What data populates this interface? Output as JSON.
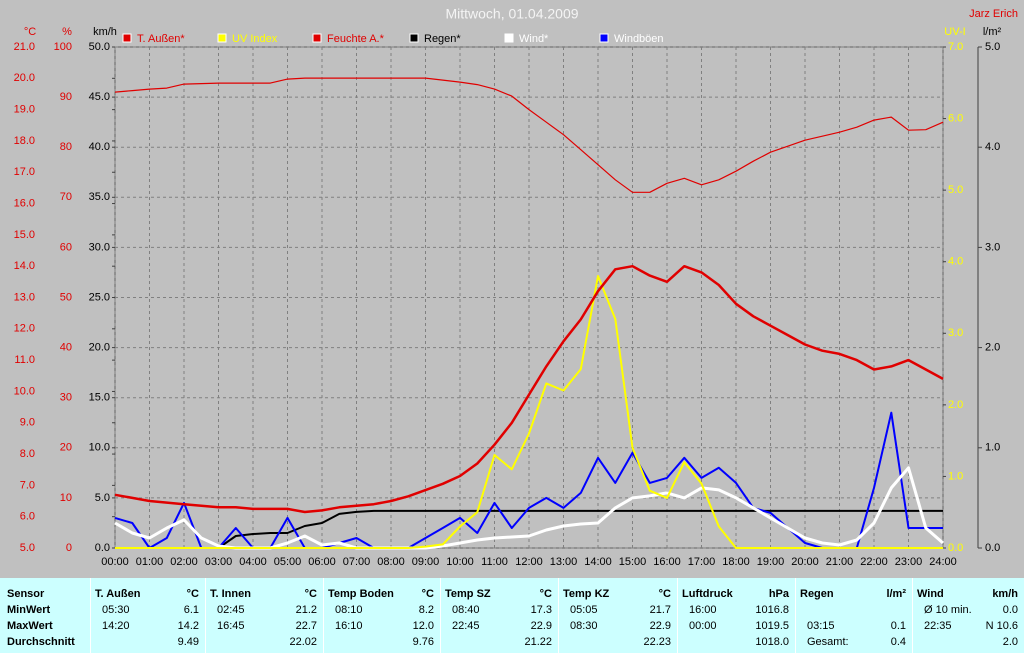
{
  "chart_data": {
    "type": "line",
    "title": "Mittwoch, 01.04.2009",
    "author": "Jarz Erich",
    "x": [
      0,
      0.5,
      1,
      1.5,
      2,
      2.5,
      3,
      3.5,
      4,
      4.5,
      5,
      5.5,
      6,
      6.5,
      7,
      7.5,
      8,
      8.5,
      9,
      9.5,
      10,
      10.5,
      11,
      11.5,
      12,
      12.5,
      13,
      13.5,
      14,
      14.5,
      15,
      15.5,
      16,
      16.5,
      17,
      17.5,
      18,
      18.5,
      19,
      19.5,
      20,
      20.5,
      21,
      21.5,
      22,
      22.5,
      23,
      23.5,
      24
    ],
    "xlim": [
      0,
      24
    ],
    "xticks": [
      {
        "value": 0,
        "label": "00:00"
      },
      {
        "value": 1,
        "label": "01:00"
      },
      {
        "value": 2,
        "label": "02:00"
      },
      {
        "value": 3,
        "label": "03:00"
      },
      {
        "value": 4,
        "label": "04:00"
      },
      {
        "value": 5,
        "label": "05:00"
      },
      {
        "value": 6,
        "label": "06:00"
      },
      {
        "value": 7,
        "label": "07:00"
      },
      {
        "value": 8,
        "label": "08:00"
      },
      {
        "value": 9,
        "label": "09:00"
      },
      {
        "value": 10,
        "label": "10:00"
      },
      {
        "value": 11,
        "label": "11:00"
      },
      {
        "value": 12,
        "label": "12:00"
      },
      {
        "value": 13,
        "label": "13:00"
      },
      {
        "value": 14,
        "label": "14:00"
      },
      {
        "value": 15,
        "label": "15:00"
      },
      {
        "value": 16,
        "label": "16:00"
      },
      {
        "value": 17,
        "label": "17:00"
      },
      {
        "value": 18,
        "label": "18:00"
      },
      {
        "value": 19,
        "label": "19:00"
      },
      {
        "value": 20,
        "label": "20:00"
      },
      {
        "value": 21,
        "label": "21:00"
      },
      {
        "value": 22,
        "label": "22:00"
      },
      {
        "value": 23,
        "label": "23:00"
      },
      {
        "value": 24,
        "label": "24:00"
      }
    ],
    "grid": true,
    "axes": [
      {
        "unit": "°C",
        "side": "left",
        "color": "#e00000",
        "lim": [
          5,
          21
        ],
        "ticks": [
          {
            "value": 5,
            "label": "5.0"
          },
          {
            "value": 6,
            "label": "6.0"
          },
          {
            "value": 7,
            "label": "7.0"
          },
          {
            "value": 8,
            "label": "8.0"
          },
          {
            "value": 9,
            "label": "9.0"
          },
          {
            "value": 10,
            "label": "10.0"
          },
          {
            "value": 11,
            "label": "11.0"
          },
          {
            "value": 12,
            "label": "12.0"
          },
          {
            "value": 13,
            "label": "13.0"
          },
          {
            "value": 14,
            "label": "14.0"
          },
          {
            "value": 15,
            "label": "15.0"
          },
          {
            "value": 16,
            "label": "16.0"
          },
          {
            "value": 17,
            "label": "17.0"
          },
          {
            "value": 18,
            "label": "18.0"
          },
          {
            "value": 19,
            "label": "19.0"
          },
          {
            "value": 20,
            "label": "20.0"
          },
          {
            "value": 21,
            "label": "21.0"
          }
        ]
      },
      {
        "unit": "%",
        "side": "left",
        "color": "#e00000",
        "lim": [
          0,
          100
        ],
        "ticks": [
          0,
          10,
          20,
          30,
          40,
          50,
          60,
          70,
          80,
          90,
          100
        ]
      },
      {
        "unit": "km/h",
        "side": "left",
        "color": "#000000",
        "lim": [
          0,
          50
        ],
        "grid": true,
        "ticks": [
          {
            "value": 0,
            "label": "0.0"
          },
          {
            "value": 5,
            "label": "5.0"
          },
          {
            "value": 10,
            "label": "10.0"
          },
          {
            "value": 15,
            "label": "15.0"
          },
          {
            "value": 20,
            "label": "20.0"
          },
          {
            "value": 25,
            "label": "25.0"
          },
          {
            "value": 30,
            "label": "30.0"
          },
          {
            "value": 35,
            "label": "35.0"
          },
          {
            "value": 40,
            "label": "40.0"
          },
          {
            "value": 45,
            "label": "45.0"
          },
          {
            "value": 50,
            "label": "50.0"
          }
        ]
      },
      {
        "unit": "UV-I",
        "side": "right",
        "color": "#ffff00",
        "lim": [
          0,
          7
        ],
        "ticks": [
          {
            "value": 0,
            "label": "0.0"
          },
          {
            "value": 1,
            "label": "1.0"
          },
          {
            "value": 2,
            "label": "2.0"
          },
          {
            "value": 3,
            "label": "3.0"
          },
          {
            "value": 4,
            "label": "4.0"
          },
          {
            "value": 5,
            "label": "5.0"
          },
          {
            "value": 6,
            "label": "6.0"
          },
          {
            "value": 7,
            "label": "7.0"
          }
        ]
      },
      {
        "unit": "l/m²",
        "side": "right",
        "color": "#000000",
        "lim": [
          0,
          5
        ],
        "ticks": [
          {
            "value": 0,
            "label": "0.0"
          },
          {
            "value": 1,
            "label": "1.0"
          },
          {
            "value": 2,
            "label": "2.0"
          },
          {
            "value": 3,
            "label": "3.0"
          },
          {
            "value": 4,
            "label": "4.0"
          },
          {
            "value": 5,
            "label": "5.0"
          }
        ]
      }
    ],
    "series": [
      {
        "name": "T. Außen*",
        "color": "#e00000",
        "label_color": "#e00000",
        "axis": 0,
        "values": [
          6.7,
          6.6,
          6.5,
          6.45,
          6.4,
          6.35,
          6.3,
          6.3,
          6.25,
          6.25,
          6.25,
          6.15,
          6.2,
          6.3,
          6.35,
          6.4,
          6.5,
          6.65,
          6.85,
          7.05,
          7.3,
          7.7,
          8.3,
          9.0,
          9.9,
          10.8,
          11.6,
          12.3,
          13.2,
          13.9,
          14.0,
          13.7,
          13.5,
          14.0,
          13.8,
          13.4,
          12.8,
          12.4,
          12.1,
          11.8,
          11.5,
          11.3,
          11.2,
          11.0,
          10.7,
          10.8,
          11.0,
          10.7,
          10.4
        ]
      },
      {
        "name": "UV Index",
        "color": "#ffff00",
        "label_color": "#ffff00",
        "axis": 3,
        "values": [
          0,
          0,
          0,
          0,
          0,
          0,
          0,
          0,
          0,
          0,
          0,
          0,
          0,
          0,
          0,
          0,
          0,
          0,
          0.02,
          0.05,
          0.3,
          0.5,
          1.3,
          1.1,
          1.6,
          2.3,
          2.2,
          2.5,
          3.8,
          3.2,
          1.4,
          0.8,
          0.7,
          1.2,
          0.9,
          0.3,
          0,
          0,
          0,
          0,
          0,
          0,
          0,
          0,
          0,
          0,
          0,
          0,
          0
        ]
      },
      {
        "name": "Feuchte A.*",
        "color": "#e00000",
        "label_color": "#e00000",
        "axis": 1,
        "values": [
          91,
          91.3,
          91.6,
          91.8,
          92.6,
          92.7,
          92.8,
          92.8,
          92.8,
          92.8,
          93.6,
          93.8,
          93.8,
          93.8,
          93.8,
          93.8,
          93.8,
          93.8,
          93.8,
          93.4,
          93,
          92.5,
          91.6,
          90.2,
          87.5,
          85,
          82.5,
          79.5,
          76.5,
          73.5,
          71,
          71,
          72.8,
          73.8,
          72.5,
          73.5,
          75.2,
          77.2,
          79,
          80.2,
          81.4,
          82.2,
          83,
          84,
          85.4,
          86,
          83.4,
          83.5,
          85
        ]
      },
      {
        "name": "Regen*",
        "color": "#000000",
        "label_color": "#000000",
        "axis": 4,
        "values": [
          0,
          0,
          0,
          0,
          0,
          0,
          0,
          0.12,
          0.14,
          0.15,
          0.15,
          0.22,
          0.25,
          0.34,
          0.36,
          0.37,
          0.37,
          0.37,
          0.37,
          0.37,
          0.37,
          0.37,
          0.37,
          0.37,
          0.37,
          0.37,
          0.37,
          0.37,
          0.37,
          0.37,
          0.37,
          0.37,
          0.37,
          0.37,
          0.37,
          0.37,
          0.37,
          0.37,
          0.37,
          0.37,
          0.37,
          0.37,
          0.37,
          0.37,
          0.37,
          0.37,
          0.37,
          0.37,
          0.37
        ]
      },
      {
        "name": "Wind*",
        "color": "#ffffff",
        "label_color": "#ffffff",
        "axis": 2,
        "values": [
          2.5,
          1.5,
          1.0,
          2.0,
          2.8,
          1.0,
          0.2,
          0,
          0,
          0,
          0.5,
          1.2,
          0.3,
          0.5,
          0,
          0,
          0,
          0,
          0,
          0.2,
          0.5,
          0.8,
          1.0,
          1.1,
          1.2,
          1.8,
          2.2,
          2.4,
          2.5,
          4.0,
          5.0,
          5.2,
          5.5,
          5.0,
          6.0,
          5.8,
          5.0,
          4.0,
          3.0,
          2.0,
          1.0,
          0.5,
          0.3,
          0.8,
          2.5,
          6.0,
          8.0,
          2.0,
          0.5
        ]
      },
      {
        "name": "Windböen",
        "color": "#0000ff",
        "label_color": "#ffffff",
        "axis": 2,
        "values": [
          3,
          2.5,
          0,
          1,
          4.5,
          0,
          0,
          2.0,
          0,
          0,
          3.0,
          0,
          0,
          0.5,
          1.0,
          0,
          0,
          0,
          1.0,
          2.0,
          3.0,
          1.5,
          4.5,
          2.0,
          4.0,
          5.0,
          4.0,
          5.5,
          9.0,
          6.5,
          9.5,
          6.5,
          7.0,
          9.0,
          7.0,
          8.0,
          6.5,
          4.0,
          3.5,
          2.0,
          0.5,
          0,
          0,
          0,
          6.0,
          13.5,
          2.0,
          2.0,
          2.0
        ]
      }
    ]
  },
  "table": {
    "first_header": "Sensor",
    "row_labels": [
      "MinWert",
      "MaxWert",
      "Durchschnitt"
    ],
    "columns": [
      {
        "name": "T. Außen",
        "unit": "°C",
        "min_time": "05:30",
        "min": "6.1",
        "max_time": "14:20",
        "max": "14.2",
        "avg": "9.49"
      },
      {
        "name": "T. Innen",
        "unit": "°C",
        "min_time": "02:45",
        "min": "21.2",
        "max_time": "16:45",
        "max": "22.7",
        "avg": "22.02"
      },
      {
        "name": "Temp Boden",
        "unit": "°C",
        "min_time": "08:10",
        "min": "8.2",
        "max_time": "16:10",
        "max": "12.0",
        "avg": "9.76"
      },
      {
        "name": "Temp SZ",
        "unit": "°C",
        "min_time": "08:40",
        "min": "17.3",
        "max_time": "22:45",
        "max": "22.9",
        "avg": "21.22"
      },
      {
        "name": "Temp KZ",
        "unit": "°C",
        "min_time": "05:05",
        "min": "21.7",
        "max_time": "08:30",
        "max": "22.9",
        "avg": "22.23"
      },
      {
        "name": "Luftdruck",
        "unit": "hPa",
        "min_time": "16:00",
        "min": "1016.8",
        "max_time": "00:00",
        "max": "1019.5",
        "avg": "1018.0"
      },
      {
        "name": "Regen",
        "unit": "l/m²",
        "max_time": "03:15",
        "max": "0.1",
        "avg_label": "Gesamt:",
        "avg": "0.4"
      },
      {
        "name": "Wind",
        "unit": "km/h",
        "min_time": "Ø 10 min.",
        "min": "0.0",
        "max_time": "22:35",
        "max": "N 10.6",
        "avg": "2.0"
      }
    ]
  }
}
